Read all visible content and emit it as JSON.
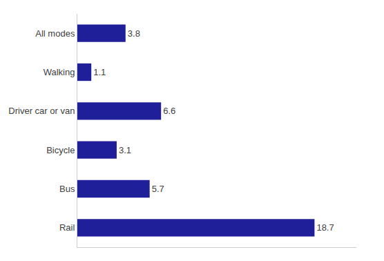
{
  "chart_data": {
    "type": "bar",
    "orientation": "horizontal",
    "categories": [
      "Rail",
      "Bus",
      "Bicycle",
      "Driver car or van",
      "Walking",
      "All modes"
    ],
    "values": [
      18.7,
      5.7,
      3.1,
      6.6,
      1.1,
      3.8
    ],
    "color": "#1f1f99",
    "xlim": [
      0,
      22
    ],
    "data_labels": true,
    "tick_labels": "y",
    "grid": false
  }
}
